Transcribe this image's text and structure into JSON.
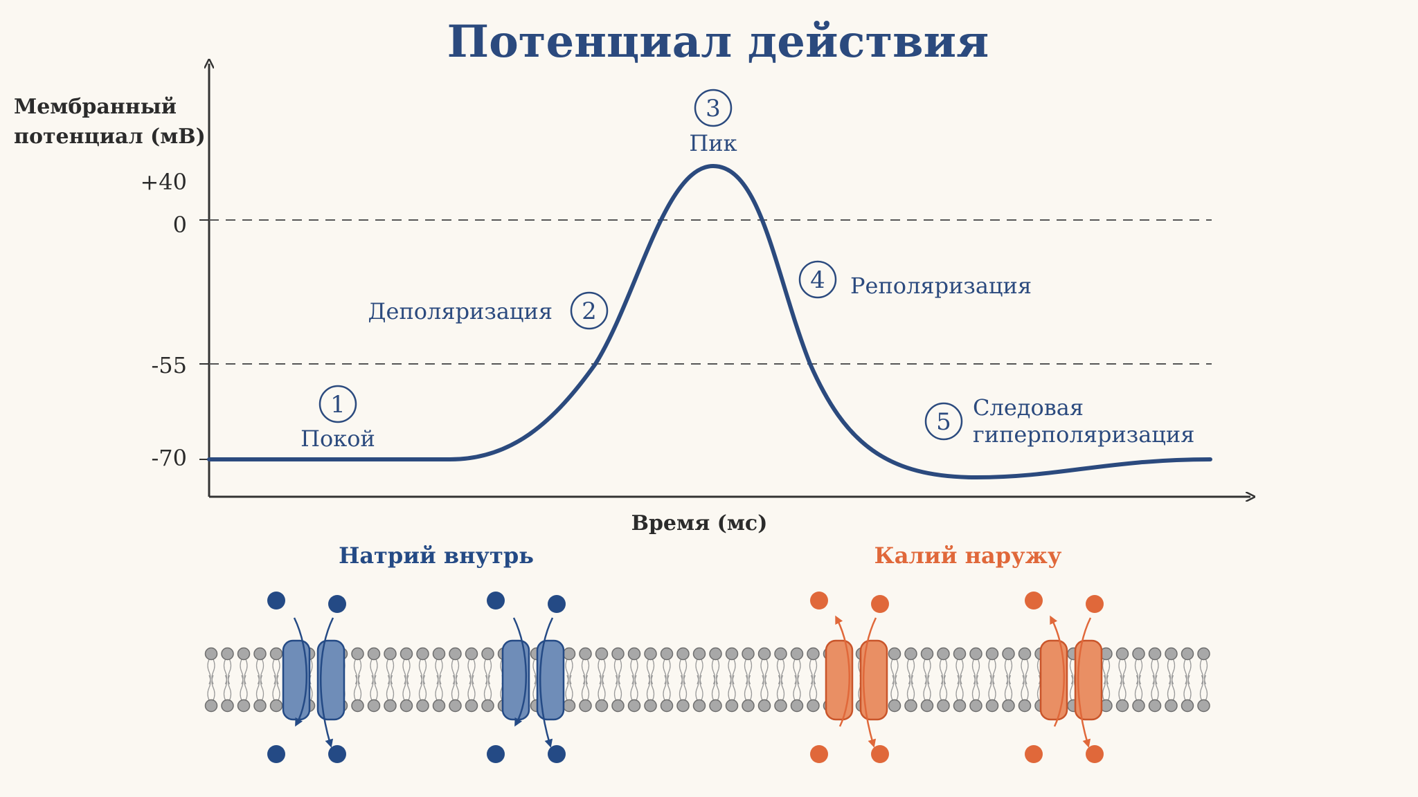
{
  "title": "Потенциал действия",
  "axes": {
    "y_label_line1": "Мембранный",
    "y_label_line2": "потенциал (мВ)",
    "x_label": "Время (мс)",
    "ticks": [
      "+40",
      "0",
      "-55",
      "-70"
    ]
  },
  "stages": [
    {
      "num": "1",
      "label": "Покой"
    },
    {
      "num": "2",
      "label": "Деполяризация"
    },
    {
      "num": "3",
      "label": "Пик"
    },
    {
      "num": "4",
      "label": "Реполяризация"
    },
    {
      "num": "5",
      "label_line1": "Следовая",
      "label_line2": "гиперполяризация"
    }
  ],
  "membrane": {
    "sodium_label": "Натрий внутрь",
    "potassium_label": "Калий наружу"
  },
  "colors": {
    "curve": "#2b4a7e",
    "sodium": "#244a85",
    "sodium_channel": "#6f8db8",
    "potassium": "#e0683a",
    "potassium_channel": "#e98f64",
    "lipid_head": "#a8a8a8"
  }
}
